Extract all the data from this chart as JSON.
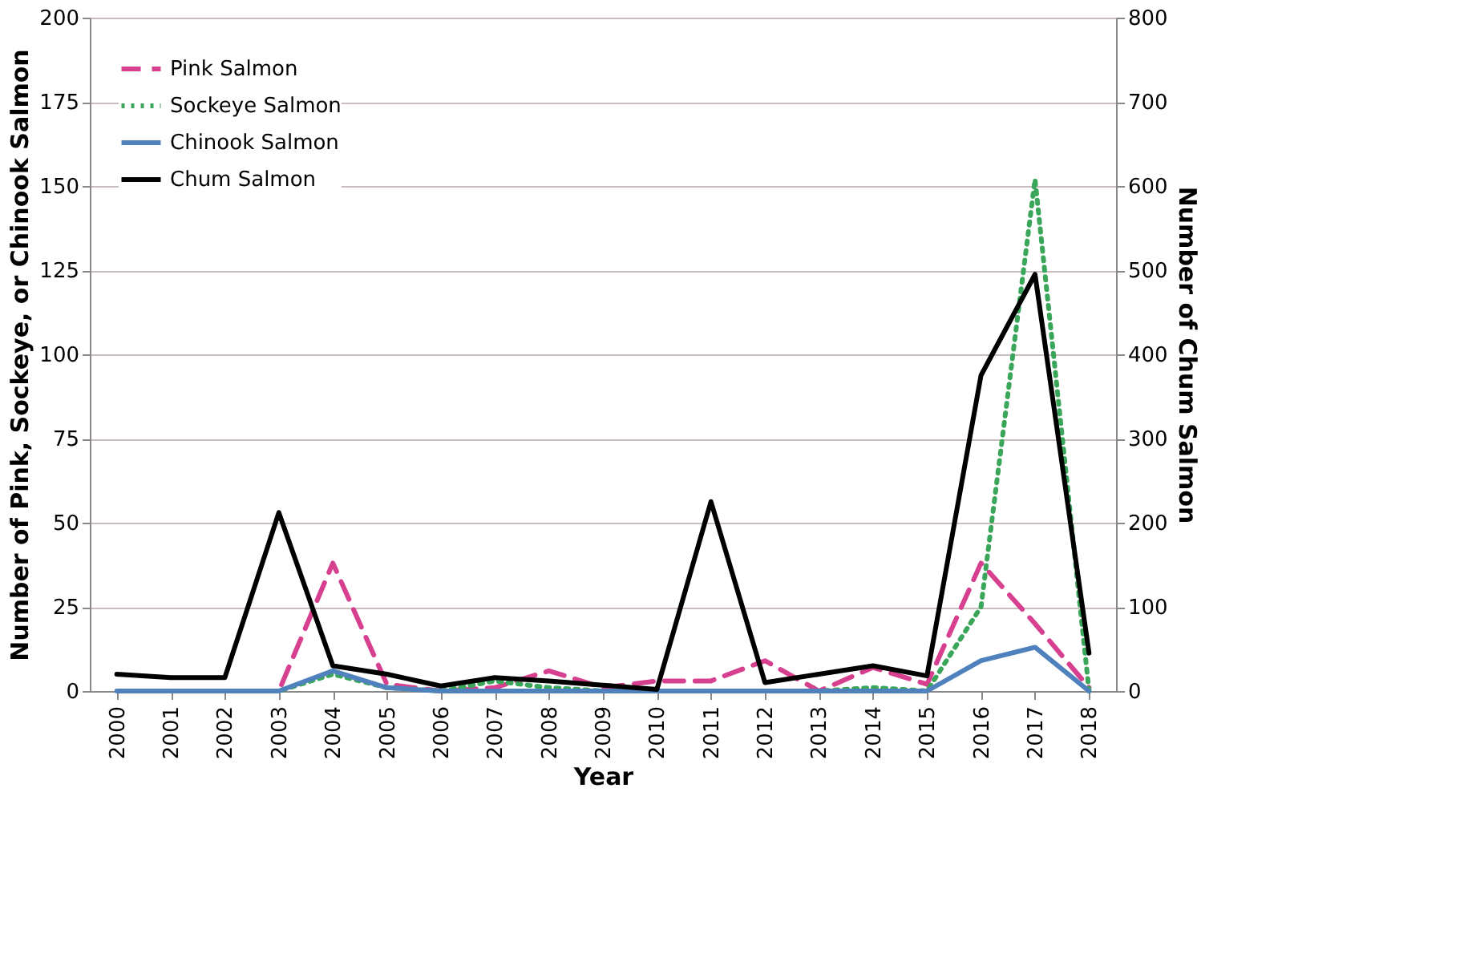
{
  "chart_data": {
    "type": "line",
    "xlabel": "Year",
    "ylabel": "Number of Pink, Sockeye, or Chinook Salmon",
    "y2label": "Number of Chum Salmon",
    "categories": [
      "2000",
      "2001",
      "2002",
      "2003",
      "2004",
      "2005",
      "2006",
      "2007",
      "2008",
      "2009",
      "2010",
      "2011",
      "2012",
      "2013",
      "2014",
      "2015",
      "2016",
      "2017",
      "2018"
    ],
    "ylim": [
      0,
      200
    ],
    "yticks": [
      0,
      25,
      50,
      75,
      100,
      125,
      150,
      175,
      200
    ],
    "y2lim": [
      0,
      800
    ],
    "y2ticks": [
      0,
      100,
      200,
      300,
      400,
      500,
      600,
      700,
      800
    ],
    "grid": "y",
    "legend": "top left",
    "series": [
      {
        "name": "Pink Salmon",
        "color": "#d6408f",
        "line_style": "dashed",
        "values": [
          null,
          null,
          0,
          0,
          38,
          2,
          0,
          1,
          6,
          1,
          3,
          3,
          9,
          0,
          7,
          2,
          38,
          20,
          1
        ]
      },
      {
        "name": "Sockeye Salmon",
        "color": "#3aa65a",
        "line_style": "dotted",
        "values": [
          null,
          null,
          0,
          0,
          5,
          1,
          0,
          3,
          1,
          0,
          0,
          0,
          0,
          0,
          1,
          0,
          25,
          152,
          0
        ]
      },
      {
        "name": "Chinook Salmon",
        "color": "#4f81bd",
        "line_style": "solid",
        "values": [
          0,
          0,
          0,
          0,
          6,
          1,
          0,
          0,
          0,
          0,
          0,
          0,
          0,
          0,
          0,
          0,
          9,
          13,
          0
        ]
      },
      {
        "name": "Chum Salmon",
        "color": "#000000",
        "line_style": "solid",
        "axis": "y2",
        "values": [
          20,
          16,
          16,
          212,
          30,
          20,
          6,
          16,
          12,
          7,
          2,
          225,
          10,
          20,
          30,
          18,
          375,
          495,
          45
        ]
      }
    ]
  }
}
